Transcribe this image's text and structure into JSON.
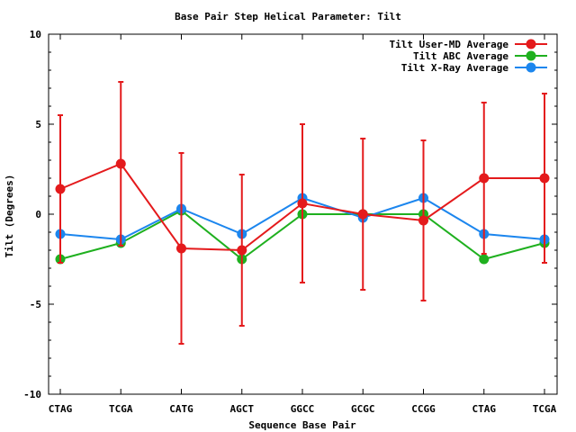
{
  "chart_data": {
    "type": "line",
    "title": "Base Pair Step Helical Parameter: Tilt",
    "xlabel": "Sequence Base Pair",
    "ylabel": "Tilt (Degrees)",
    "ylim": [
      -10,
      10
    ],
    "yticks": [
      "10",
      "5",
      "0",
      "-5",
      "-10"
    ],
    "ytick_values": [
      10,
      5,
      0,
      -5,
      -10
    ],
    "categories": [
      "CTAG",
      "TCGA",
      "CATG",
      "AGCT",
      "GGCC",
      "GCGC",
      "CCGG",
      "CTAG",
      "TCGA"
    ],
    "grid": false,
    "legend_position": "top-right",
    "series": [
      {
        "name": "Tilt User-MD Average",
        "color": "#e41a1c",
        "values": [
          1.4,
          2.8,
          -1.9,
          -2.0,
          0.6,
          0.0,
          -0.35,
          2.0,
          2.0
        ],
        "error": [
          4.1,
          4.55,
          5.3,
          4.2,
          4.4,
          4.2,
          4.45,
          4.2,
          4.7
        ]
      },
      {
        "name": "Tilt ABC Average",
        "color": "#1fb01f",
        "values": [
          -2.5,
          -1.6,
          0.2,
          -2.5,
          0.0,
          0.0,
          0.0,
          -2.5,
          -1.6
        ]
      },
      {
        "name": "Tilt X-Ray Average",
        "color": "#1c86ee",
        "values": [
          -1.1,
          -1.4,
          0.3,
          -1.1,
          0.9,
          -0.2,
          0.9,
          -1.1,
          -1.4
        ]
      }
    ]
  }
}
